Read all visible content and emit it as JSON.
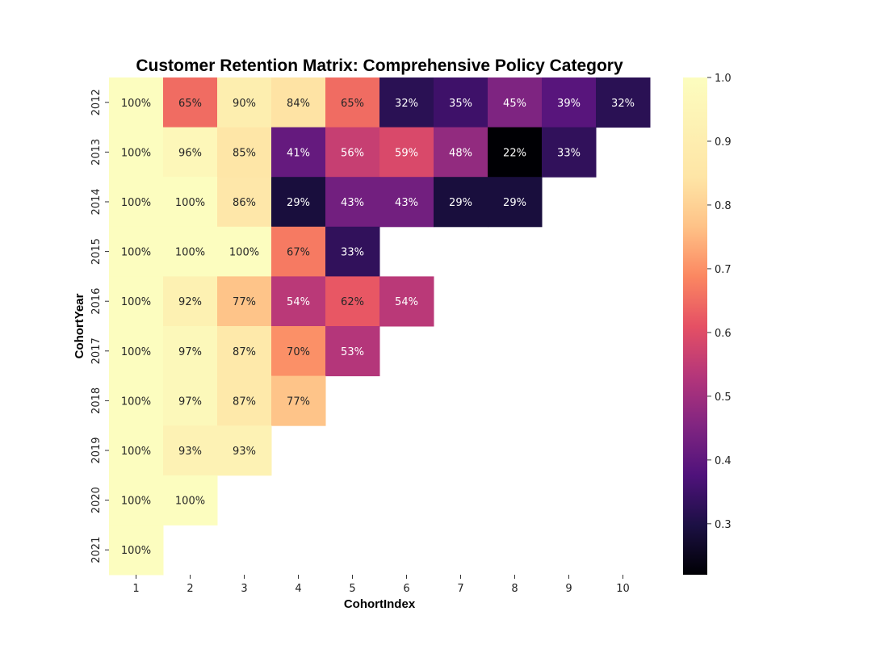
{
  "chart_data": {
    "type": "heatmap",
    "title": "Customer Retention Matrix: Comprehensive Policy Category",
    "xlabel": "CohortIndex",
    "ylabel": "CohortYear",
    "x_categories": [
      "1",
      "2",
      "3",
      "4",
      "5",
      "6",
      "7",
      "8",
      "9",
      "10"
    ],
    "y_categories": [
      "2012",
      "2013",
      "2014",
      "2015",
      "2016",
      "2017",
      "2018",
      "2019",
      "2020",
      "2021"
    ],
    "values": [
      [
        1.0,
        0.65,
        0.9,
        0.84,
        0.65,
        0.32,
        0.35,
        0.45,
        0.39,
        0.32
      ],
      [
        1.0,
        0.96,
        0.85,
        0.41,
        0.56,
        0.59,
        0.48,
        0.22,
        0.33,
        null
      ],
      [
        1.0,
        1.0,
        0.86,
        0.29,
        0.43,
        0.43,
        0.29,
        0.29,
        null,
        null
      ],
      [
        1.0,
        1.0,
        1.0,
        0.67,
        0.33,
        null,
        null,
        null,
        null,
        null
      ],
      [
        1.0,
        0.92,
        0.77,
        0.54,
        0.62,
        0.54,
        null,
        null,
        null,
        null
      ],
      [
        1.0,
        0.97,
        0.87,
        0.7,
        0.53,
        null,
        null,
        null,
        null,
        null
      ],
      [
        1.0,
        0.97,
        0.87,
        0.77,
        null,
        null,
        null,
        null,
        null,
        null
      ],
      [
        1.0,
        0.93,
        0.93,
        null,
        null,
        null,
        null,
        null,
        null,
        null
      ],
      [
        1.0,
        1.0,
        null,
        null,
        null,
        null,
        null,
        null,
        null,
        null
      ],
      [
        1.0,
        null,
        null,
        null,
        null,
        null,
        null,
        null,
        null,
        null
      ]
    ],
    "cell_labels": [
      [
        "100%",
        "65%",
        "90%",
        "84%",
        "65%",
        "32%",
        "35%",
        "45%",
        "39%",
        "32%"
      ],
      [
        "100%",
        "96%",
        "85%",
        "41%",
        "56%",
        "59%",
        "48%",
        "22%",
        "33%",
        null
      ],
      [
        "100%",
        "100%",
        "86%",
        "29%",
        "43%",
        "43%",
        "29%",
        "29%",
        null,
        null
      ],
      [
        "100%",
        "100%",
        "100%",
        "67%",
        "33%",
        null,
        null,
        null,
        null,
        null
      ],
      [
        "100%",
        "92%",
        "77%",
        "54%",
        "62%",
        "54%",
        null,
        null,
        null,
        null
      ],
      [
        "100%",
        "97%",
        "87%",
        "70%",
        "53%",
        null,
        null,
        null,
        null,
        null
      ],
      [
        "100%",
        "97%",
        "87%",
        "77%",
        null,
        null,
        null,
        null,
        null,
        null
      ],
      [
        "100%",
        "93%",
        "93%",
        null,
        null,
        null,
        null,
        null,
        null,
        null
      ],
      [
        "100%",
        "100%",
        null,
        null,
        null,
        null,
        null,
        null,
        null,
        null
      ],
      [
        "100%",
        null,
        null,
        null,
        null,
        null,
        null,
        null,
        null,
        null
      ]
    ],
    "colormap": "magma",
    "vmin": 0.22,
    "vmax": 1.0,
    "colorbar_ticks": [
      "0.3",
      "0.4",
      "0.5",
      "0.6",
      "0.7",
      "0.8",
      "0.9",
      "1.0"
    ],
    "grid": false
  }
}
